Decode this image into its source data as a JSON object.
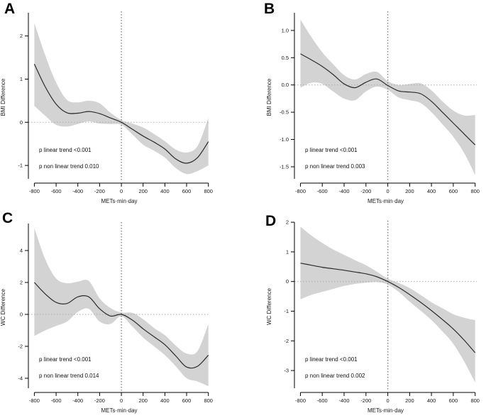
{
  "figure": {
    "background": "#ffffff",
    "band_color": "#d3d3d3",
    "curve_color": "#2b2b2b",
    "axis_color": "#000000",
    "href_color": "#ababab",
    "vref_color": "#7a7a7a"
  },
  "chart_data": [
    {
      "id": "A",
      "type": "area",
      "title": "",
      "xlabel": "METs·min·day",
      "ylabel": "BMI Difference",
      "p_linear_label": "p linear trend <0.001",
      "p_nonlinear_label": "p non linear trend 0.010",
      "legend": "none",
      "grid": false,
      "xlim": [
        -855,
        815
      ],
      "ylim": [
        -1.41,
        2.57
      ],
      "xticks": [
        -800,
        -600,
        -400,
        -200,
        0,
        200,
        400,
        600,
        800
      ],
      "xtick_labels": [
        "-800",
        "-600",
        "-400",
        "-200",
        "0",
        "200",
        "400",
        "600",
        "800"
      ],
      "yticks": [
        -1,
        0,
        1,
        2
      ],
      "ytick_labels": [
        "-1",
        "0",
        "1",
        "2"
      ],
      "reference_lines": {
        "h": 0,
        "v": 0
      },
      "x": [
        -800,
        -700,
        -600,
        -500,
        -400,
        -300,
        -200,
        -100,
        0,
        100,
        200,
        300,
        400,
        500,
        600,
        700,
        800
      ],
      "series": [
        {
          "name": "estimate",
          "values": [
            1.35,
            0.82,
            0.42,
            0.22,
            0.21,
            0.25,
            0.2,
            0.1,
            0.0,
            -0.16,
            -0.32,
            -0.46,
            -0.62,
            -0.85,
            -0.95,
            -0.82,
            -0.45
          ]
        },
        {
          "name": "ci_upper",
          "values": [
            2.3,
            1.55,
            0.92,
            0.52,
            0.46,
            0.5,
            0.44,
            0.22,
            0.05,
            -0.03,
            -0.12,
            -0.27,
            -0.44,
            -0.63,
            -0.7,
            -0.55,
            0.1
          ]
        },
        {
          "name": "ci_lower",
          "values": [
            0.38,
            0.15,
            -0.06,
            -0.1,
            -0.04,
            0.02,
            -0.03,
            -0.04,
            -0.06,
            -0.28,
            -0.52,
            -0.66,
            -0.82,
            -1.06,
            -1.2,
            -1.13,
            -1.0
          ]
        }
      ]
    },
    {
      "id": "B",
      "type": "area",
      "title": "",
      "xlabel": "METs·min·day",
      "ylabel": "BMI Difference",
      "p_linear_label": "p linear trend <0.001",
      "p_nonlinear_label": "p non linear trend 0.003",
      "legend": "none",
      "grid": false,
      "xlim": [
        -855,
        815
      ],
      "ylim": [
        -1.8,
        1.35
      ],
      "xticks": [
        -800,
        -600,
        -400,
        -200,
        0,
        200,
        400,
        600,
        800
      ],
      "xtick_labels": [
        "-800",
        "-600",
        "-400",
        "-200",
        "0",
        "200",
        "400",
        "600",
        "800"
      ],
      "yticks": [
        -1.5,
        -1.0,
        -0.5,
        0.0,
        0.5,
        1.0
      ],
      "ytick_labels": [
        "-1.5",
        "-1.0",
        "-0.5",
        "0.0",
        "0.5",
        "1.0"
      ],
      "reference_lines": {
        "h": 0,
        "v": 0
      },
      "x": [
        -800,
        -700,
        -600,
        -500,
        -400,
        -300,
        -200,
        -100,
        0,
        100,
        200,
        300,
        400,
        500,
        600,
        700,
        800
      ],
      "series": [
        {
          "name": "estimate",
          "values": [
            0.57,
            0.46,
            0.34,
            0.19,
            0.02,
            -0.05,
            0.05,
            0.11,
            -0.01,
            -0.11,
            -0.13,
            -0.16,
            -0.3,
            -0.5,
            -0.7,
            -0.9,
            -1.1
          ]
        },
        {
          "name": "ci_upper",
          "values": [
            1.2,
            0.88,
            0.6,
            0.38,
            0.18,
            0.1,
            0.2,
            0.24,
            0.07,
            0.0,
            0.02,
            0.03,
            -0.1,
            -0.3,
            -0.47,
            -0.56,
            -0.55
          ]
        },
        {
          "name": "ci_lower",
          "values": [
            -0.05,
            0.04,
            0.02,
            -0.12,
            -0.25,
            -0.28,
            -0.12,
            -0.03,
            -0.09,
            -0.23,
            -0.28,
            -0.33,
            -0.5,
            -0.72,
            -0.95,
            -1.25,
            -1.65
          ]
        }
      ]
    },
    {
      "id": "C",
      "type": "area",
      "title": "",
      "xlabel": "METs·min·day",
      "ylabel": "WC Difference",
      "p_linear_label": "p linear trend <0.001",
      "p_nonlinear_label": "p non linear trend 0.014",
      "legend": "none",
      "grid": false,
      "xlim": [
        -855,
        815
      ],
      "ylim": [
        -4.89,
        5.78
      ],
      "xticks": [
        -800,
        -600,
        -400,
        -200,
        0,
        200,
        400,
        600,
        800
      ],
      "xtick_labels": [
        "-800",
        "-600",
        "-400",
        "-200",
        "0",
        "200",
        "400",
        "600",
        "800"
      ],
      "yticks": [
        -4,
        -2,
        0,
        2,
        4
      ],
      "ytick_labels": [
        "-4",
        "-2",
        "0",
        "2",
        "4"
      ],
      "reference_lines": {
        "h": 0,
        "v": 0
      },
      "x": [
        -800,
        -700,
        -600,
        -500,
        -400,
        -300,
        -200,
        -100,
        0,
        100,
        200,
        300,
        400,
        500,
        600,
        700,
        800
      ],
      "series": [
        {
          "name": "estimate",
          "values": [
            2.0,
            1.28,
            0.75,
            0.68,
            1.1,
            1.1,
            0.35,
            -0.1,
            0.0,
            -0.35,
            -0.9,
            -1.4,
            -1.9,
            -2.6,
            -3.3,
            -3.25,
            -2.55
          ]
        },
        {
          "name": "ci_upper",
          "values": [
            5.4,
            3.45,
            2.25,
            1.95,
            2.05,
            2.1,
            1.0,
            0.4,
            0.12,
            0.1,
            -0.3,
            -0.85,
            -1.3,
            -1.95,
            -2.45,
            -2.3,
            -0.6
          ]
        },
        {
          "name": "ci_lower",
          "values": [
            -1.35,
            -1.0,
            -0.72,
            -0.45,
            0.15,
            0.35,
            -0.45,
            -0.6,
            -0.12,
            -0.75,
            -1.45,
            -2.0,
            -2.55,
            -3.25,
            -4.0,
            -4.2,
            -4.5
          ]
        }
      ]
    },
    {
      "id": "D",
      "type": "area",
      "title": "",
      "xlabel": "METs·min·day",
      "ylabel": "WC Difference",
      "p_linear_label": "p linear trend <0.001",
      "p_nonlinear_label": "p non linear trend 0.002",
      "legend": "none",
      "grid": false,
      "xlim": [
        -855,
        815
      ],
      "ylim": [
        -3.74,
        2.05
      ],
      "xticks": [
        -800,
        -600,
        -400,
        -200,
        0,
        200,
        400,
        600,
        800
      ],
      "xtick_labels": [
        "-800",
        "-600",
        "-400",
        "-200",
        "0",
        "200",
        "400",
        "600",
        "800"
      ],
      "yticks": [
        -3,
        -2,
        -1,
        0,
        1,
        2
      ],
      "ytick_labels": [
        "-3",
        "-2",
        "-1",
        "0",
        "1",
        "2"
      ],
      "reference_lines": {
        "h": 0,
        "v": 0
      },
      "x": [
        -800,
        -700,
        -600,
        -500,
        -400,
        -300,
        -200,
        -100,
        0,
        100,
        200,
        300,
        400,
        500,
        600,
        700,
        800
      ],
      "series": [
        {
          "name": "estimate",
          "values": [
            0.62,
            0.55,
            0.48,
            0.43,
            0.38,
            0.32,
            0.26,
            0.16,
            0.0,
            -0.2,
            -0.44,
            -0.7,
            -0.98,
            -1.28,
            -1.6,
            -1.98,
            -2.4
          ]
        },
        {
          "name": "ci_upper",
          "values": [
            1.85,
            1.55,
            1.3,
            1.08,
            0.9,
            0.72,
            0.55,
            0.33,
            0.1,
            -0.05,
            -0.22,
            -0.45,
            -0.7,
            -0.9,
            -1.1,
            -1.22,
            -1.3
          ]
        },
        {
          "name": "ci_lower",
          "values": [
            -0.6,
            -0.45,
            -0.35,
            -0.25,
            -0.15,
            -0.08,
            -0.04,
            -0.02,
            -0.1,
            -0.35,
            -0.68,
            -0.98,
            -1.3,
            -1.68,
            -2.1,
            -2.7,
            -3.4
          ]
        }
      ]
    }
  ]
}
